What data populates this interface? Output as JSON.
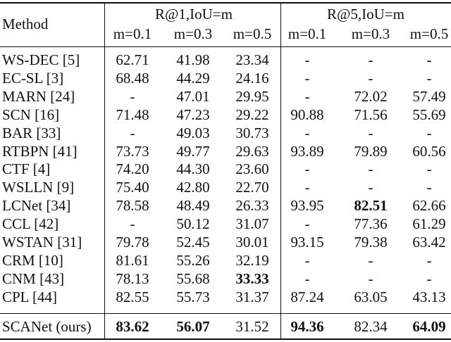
{
  "table": {
    "header": {
      "method": "Method",
      "groups": [
        {
          "label": "R@1,IoU=m",
          "subs": [
            "m=0.1",
            "m=0.3",
            "m=0.5"
          ]
        },
        {
          "label": "R@5,IoU=m",
          "subs": [
            "m=0.1",
            "m=0.3",
            "m=0.5"
          ]
        }
      ]
    },
    "rows": [
      {
        "method": "WS-DEC [5]",
        "values": [
          "62.71",
          "41.98",
          "23.34",
          "-",
          "-",
          "-"
        ],
        "bold": []
      },
      {
        "method": "EC-SL [3]",
        "values": [
          "68.48",
          "44.29",
          "24.16",
          "-",
          "-",
          "-"
        ],
        "bold": []
      },
      {
        "method": "MARN [24]",
        "values": [
          "-",
          "47.01",
          "29.95",
          "-",
          "72.02",
          "57.49"
        ],
        "bold": []
      },
      {
        "method": "SCN [16]",
        "values": [
          "71.48",
          "47.23",
          "29.22",
          "90.88",
          "71.56",
          "55.69"
        ],
        "bold": []
      },
      {
        "method": "BAR [33]",
        "values": [
          "-",
          "49.03",
          "30.73",
          "-",
          "-",
          "-"
        ],
        "bold": []
      },
      {
        "method": "RTBPN [41]",
        "values": [
          "73.73",
          "49.77",
          "29.63",
          "93.89",
          "79.89",
          "60.56"
        ],
        "bold": []
      },
      {
        "method": "CTF [4]",
        "values": [
          "74.20",
          "44.30",
          "23.60",
          "-",
          "-",
          "-"
        ],
        "bold": []
      },
      {
        "method": "WSLLN [9]",
        "values": [
          "75.40",
          "42.80",
          "22.70",
          "-",
          "-",
          "-"
        ],
        "bold": []
      },
      {
        "method": "LCNet [34]",
        "values": [
          "78.58",
          "48.49",
          "26.33",
          "93.95",
          "82.51",
          "62.66"
        ],
        "bold": [
          4
        ]
      },
      {
        "method": "CCL [42]",
        "values": [
          "-",
          "50.12",
          "31.07",
          "-",
          "77.36",
          "61.29"
        ],
        "bold": []
      },
      {
        "method": "WSTAN [31]",
        "values": [
          "79.78",
          "52.45",
          "30.01",
          "93.15",
          "79.38",
          "63.42"
        ],
        "bold": []
      },
      {
        "method": "CRM [10]",
        "values": [
          "81.61",
          "55.26",
          "32.19",
          "-",
          "-",
          "-"
        ],
        "bold": []
      },
      {
        "method": "CNM [43]",
        "values": [
          "78.13",
          "55.68",
          "33.33",
          "-",
          "-",
          "-"
        ],
        "bold": [
          2
        ]
      },
      {
        "method": "CPL [44]",
        "values": [
          "82.55",
          "55.73",
          "31.37",
          "87.24",
          "63.05",
          "43.13"
        ],
        "bold": []
      }
    ],
    "final_row": {
      "method": "SCANet (ours)",
      "values": [
        "83.62",
        "56.07",
        "31.52",
        "94.36",
        "82.34",
        "64.09"
      ],
      "bold": [
        0,
        1,
        3,
        5
      ]
    }
  }
}
